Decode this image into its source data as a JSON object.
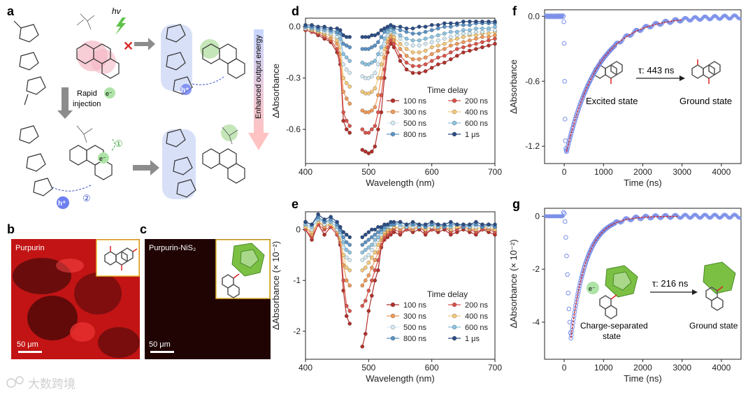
{
  "panels": {
    "a": {
      "label": "a",
      "hv": "hv",
      "rapid": "Rapid",
      "injection": "injection",
      "electron": "e⁻",
      "hole": "h⁺",
      "step1": "①",
      "step2": "②",
      "energy_label": "Enhanced output energy"
    },
    "b": {
      "label": "b",
      "title": "Purpurin",
      "scale": "50 μm"
    },
    "c": {
      "label": "c",
      "title": "Purpurin-NiS₂",
      "scale": "50 μm"
    },
    "d": {
      "label": "d"
    },
    "e": {
      "label": "e"
    },
    "f": {
      "label": "f",
      "excited": "Excited state",
      "ground": "Ground state",
      "tau": "τ: 443 ns"
    },
    "g": {
      "label": "g",
      "charge": "Charge-separated",
      "charge2": "state",
      "ground": "Ground state",
      "tau": "τ: 216 ns",
      "electron": "e⁻"
    }
  },
  "watermark": "大数跨境",
  "colors": {
    "series": [
      "#b2302a",
      "#d9534a",
      "#ef9a5a",
      "#f5c97a",
      "#d6ecf5",
      "#8cc3e2",
      "#5a93c7",
      "#2b4d86"
    ],
    "fit": "#cc2a2a",
    "decay_points": "#7b8fe8",
    "accent_yellow": "#e8b830"
  },
  "chart_data": [
    {
      "panel": "d",
      "type": "line",
      "xlabel": "Wavelength (nm)",
      "ylabel": "ΔAbsorbance",
      "xlim": [
        400,
        700
      ],
      "ylim": [
        -0.8,
        0.05
      ],
      "xticks": [
        400,
        500,
        600,
        700
      ],
      "yticks": [
        0.0,
        -0.3,
        -0.6
      ],
      "ytick_labels": [
        "0.0",
        "-0.3",
        "-0.6"
      ],
      "legend_title": "Time delay",
      "legend_position": "lower-right",
      "x": [
        400,
        410,
        420,
        430,
        440,
        450,
        455,
        460,
        465,
        470,
        490,
        495,
        500,
        505,
        510,
        515,
        520,
        525,
        530,
        535,
        540,
        550,
        560,
        570,
        580,
        590,
        600,
        610,
        620,
        630,
        640,
        650,
        660,
        670,
        680,
        690,
        700
      ],
      "series": [
        {
          "name": "100 ns",
          "values": [
            -0.02,
            -0.03,
            -0.05,
            -0.07,
            -0.09,
            -0.15,
            -0.22,
            -0.55,
            -0.6,
            -0.62,
            -0.72,
            -0.73,
            -0.74,
            -0.73,
            -0.7,
            -0.6,
            -0.5,
            -0.3,
            -0.15,
            -0.1,
            -0.12,
            -0.2,
            -0.25,
            -0.27,
            -0.27,
            -0.26,
            -0.24,
            -0.22,
            -0.21,
            -0.19,
            -0.17,
            -0.15,
            -0.14,
            -0.13,
            -0.12,
            -0.11,
            -0.1
          ]
        },
        {
          "name": "200 ns",
          "values": [
            -0.02,
            -0.03,
            -0.04,
            -0.06,
            -0.08,
            -0.13,
            -0.2,
            -0.5,
            -0.55,
            -0.58,
            -0.6,
            -0.62,
            -0.62,
            -0.6,
            -0.58,
            -0.5,
            -0.4,
            -0.25,
            -0.12,
            -0.08,
            -0.1,
            -0.17,
            -0.21,
            -0.23,
            -0.23,
            -0.22,
            -0.2,
            -0.18,
            -0.17,
            -0.15,
            -0.13,
            -0.12,
            -0.11,
            -0.1,
            -0.09,
            -0.08,
            -0.07
          ]
        },
        {
          "name": "300 ns",
          "values": [
            -0.01,
            -0.02,
            -0.03,
            -0.05,
            -0.07,
            -0.1,
            -0.16,
            -0.38,
            -0.42,
            -0.45,
            -0.49,
            -0.5,
            -0.5,
            -0.49,
            -0.47,
            -0.4,
            -0.3,
            -0.18,
            -0.09,
            -0.06,
            -0.08,
            -0.13,
            -0.17,
            -0.19,
            -0.19,
            -0.18,
            -0.16,
            -0.14,
            -0.13,
            -0.11,
            -0.1,
            -0.09,
            -0.08,
            -0.07,
            -0.06,
            -0.06,
            -0.05
          ]
        },
        {
          "name": "400 ns",
          "values": [
            -0.01,
            -0.02,
            -0.03,
            -0.04,
            -0.05,
            -0.08,
            -0.12,
            -0.3,
            -0.33,
            -0.35,
            -0.38,
            -0.39,
            -0.39,
            -0.38,
            -0.36,
            -0.3,
            -0.22,
            -0.13,
            -0.07,
            -0.04,
            -0.06,
            -0.1,
            -0.13,
            -0.15,
            -0.15,
            -0.14,
            -0.12,
            -0.11,
            -0.1,
            -0.08,
            -0.07,
            -0.06,
            -0.05,
            -0.05,
            -0.04,
            -0.04,
            -0.03
          ]
        },
        {
          "name": "500 ns",
          "values": [
            -0.01,
            -0.01,
            -0.02,
            -0.03,
            -0.04,
            -0.06,
            -0.09,
            -0.22,
            -0.25,
            -0.27,
            -0.29,
            -0.3,
            -0.3,
            -0.29,
            -0.27,
            -0.22,
            -0.16,
            -0.1,
            -0.05,
            -0.03,
            -0.04,
            -0.07,
            -0.1,
            -0.11,
            -0.11,
            -0.1,
            -0.09,
            -0.08,
            -0.07,
            -0.06,
            -0.05,
            -0.04,
            -0.04,
            -0.03,
            -0.03,
            -0.02,
            -0.02
          ]
        },
        {
          "name": "600 ns",
          "values": [
            0.0,
            -0.01,
            -0.02,
            -0.02,
            -0.03,
            -0.04,
            -0.07,
            -0.16,
            -0.18,
            -0.2,
            -0.21,
            -0.22,
            -0.22,
            -0.21,
            -0.2,
            -0.16,
            -0.12,
            -0.07,
            -0.03,
            -0.02,
            -0.03,
            -0.05,
            -0.07,
            -0.08,
            -0.08,
            -0.07,
            -0.06,
            -0.05,
            -0.04,
            -0.03,
            -0.03,
            -0.02,
            -0.02,
            -0.01,
            -0.01,
            -0.01,
            0.0
          ]
        },
        {
          "name": "800 ns",
          "values": [
            0.0,
            0.0,
            -0.01,
            -0.01,
            -0.02,
            -0.03,
            -0.04,
            -0.1,
            -0.11,
            -0.12,
            -0.13,
            -0.13,
            -0.13,
            -0.12,
            -0.11,
            -0.09,
            -0.06,
            -0.03,
            -0.01,
            0.0,
            -0.01,
            -0.02,
            -0.03,
            -0.04,
            -0.04,
            -0.03,
            -0.02,
            -0.01,
            0.0,
            0.0,
            0.01,
            0.01,
            0.01,
            0.02,
            0.02,
            0.02,
            0.02
          ]
        },
        {
          "name": "1 μs",
          "values": [
            0.01,
            0.01,
            0.0,
            0.0,
            -0.01,
            -0.01,
            -0.02,
            -0.05,
            -0.06,
            -0.06,
            -0.06,
            -0.06,
            -0.06,
            -0.05,
            -0.05,
            -0.04,
            -0.02,
            -0.01,
            0.0,
            0.01,
            0.0,
            0.0,
            -0.01,
            -0.01,
            0.0,
            0.0,
            0.01,
            0.01,
            0.02,
            0.02,
            0.02,
            0.03,
            0.03,
            0.03,
            0.03,
            0.03,
            0.03
          ]
        }
      ]
    },
    {
      "panel": "e",
      "type": "line",
      "xlabel": "Wavelength (nm)",
      "ylabel": "ΔAbsorbance (× 10⁻²)",
      "xlim": [
        400,
        700
      ],
      "ylim": [
        -2.55,
        0.35
      ],
      "xticks": [
        400,
        500,
        600,
        700
      ],
      "yticks": [
        0,
        -1,
        -2
      ],
      "ytick_labels": [
        "0",
        "-1",
        "-2"
      ],
      "legend_title": "Time delay",
      "legend_position": "lower-right",
      "x": [
        400,
        410,
        420,
        430,
        440,
        450,
        455,
        460,
        465,
        470,
        490,
        495,
        500,
        505,
        510,
        515,
        520,
        525,
        530,
        535,
        540,
        550,
        560,
        570,
        580,
        590,
        600,
        610,
        620,
        630,
        640,
        650,
        660,
        670,
        680,
        690,
        700
      ],
      "series": [
        {
          "name": "100 ns",
          "values": [
            0.0,
            -0.2,
            0.1,
            -0.1,
            0.05,
            -0.1,
            -0.3,
            -1.2,
            -1.7,
            -1.85,
            -2.3,
            -2.05,
            -1.6,
            -1.3,
            -1.0,
            -0.8,
            -0.35,
            -0.2,
            -0.15,
            -0.1,
            -0.05,
            -0.1,
            0.0,
            -0.05,
            0.0,
            -0.1,
            0.0,
            -0.05,
            0.0,
            -0.1,
            -0.05,
            0.0,
            -0.05,
            -0.1,
            0.0,
            -0.05,
            -0.1
          ]
        },
        {
          "name": "200 ns",
          "values": [
            0.0,
            -0.15,
            0.1,
            0.0,
            0.05,
            -0.1,
            -0.25,
            -1.0,
            -1.5,
            -1.6,
            -1.5,
            -1.4,
            -1.2,
            -1.0,
            -0.8,
            -0.6,
            -0.3,
            -0.15,
            -0.1,
            -0.05,
            0.0,
            -0.05,
            0.0,
            0.0,
            0.05,
            -0.05,
            0.0,
            0.0,
            0.05,
            -0.05,
            0.0,
            0.05,
            0.0,
            -0.05,
            0.0,
            0.0,
            -0.05
          ]
        },
        {
          "name": "300 ns",
          "values": [
            0.05,
            -0.1,
            0.15,
            0.05,
            0.1,
            -0.05,
            -0.2,
            -0.7,
            -1.0,
            -1.1,
            -1.1,
            -1.0,
            -0.9,
            -0.75,
            -0.6,
            -0.45,
            -0.2,
            -0.1,
            -0.05,
            0.0,
            0.05,
            0.0,
            0.05,
            0.0,
            0.05,
            0.0,
            0.05,
            0.0,
            0.05,
            0.0,
            0.05,
            0.05,
            0.0,
            0.0,
            0.05,
            0.0,
            0.0
          ]
        },
        {
          "name": "400 ns",
          "values": [
            0.05,
            -0.05,
            0.15,
            0.1,
            0.1,
            0.0,
            -0.15,
            -0.5,
            -0.75,
            -0.8,
            -0.8,
            -0.75,
            -0.65,
            -0.55,
            -0.45,
            -0.3,
            -0.15,
            -0.05,
            0.0,
            0.05,
            0.05,
            0.05,
            0.05,
            0.05,
            0.05,
            0.0,
            0.05,
            0.05,
            0.05,
            0.0,
            0.05,
            0.05,
            0.05,
            0.0,
            0.05,
            0.05,
            0.0
          ]
        },
        {
          "name": "500 ns",
          "values": [
            0.1,
            0.0,
            0.2,
            0.1,
            0.15,
            0.0,
            -0.1,
            -0.35,
            -0.55,
            -0.6,
            -0.6,
            -0.55,
            -0.5,
            -0.4,
            -0.3,
            -0.2,
            -0.1,
            0.0,
            0.05,
            0.05,
            0.1,
            0.05,
            0.1,
            0.05,
            0.1,
            0.05,
            0.05,
            0.1,
            0.05,
            0.05,
            0.1,
            0.05,
            0.05,
            0.05,
            0.1,
            0.05,
            0.05
          ]
        },
        {
          "name": "600 ns",
          "values": [
            0.1,
            0.05,
            0.2,
            0.15,
            0.15,
            0.05,
            -0.05,
            -0.25,
            -0.4,
            -0.45,
            -0.45,
            -0.4,
            -0.35,
            -0.3,
            -0.2,
            -0.15,
            -0.05,
            0.0,
            0.05,
            0.1,
            0.1,
            0.1,
            0.05,
            0.1,
            0.05,
            0.1,
            0.1,
            0.05,
            0.1,
            0.05,
            0.1,
            0.1,
            0.05,
            0.1,
            0.05,
            0.1,
            0.05
          ]
        },
        {
          "name": "800 ns",
          "values": [
            0.15,
            0.1,
            0.25,
            0.15,
            0.2,
            0.1,
            0.0,
            -0.15,
            -0.25,
            -0.3,
            -0.3,
            -0.25,
            -0.2,
            -0.15,
            -0.1,
            -0.05,
            0.0,
            0.05,
            0.1,
            0.1,
            0.1,
            0.15,
            0.1,
            0.1,
            0.1,
            0.05,
            0.1,
            0.1,
            0.05,
            0.1,
            0.1,
            0.05,
            0.1,
            0.1,
            0.05,
            0.1,
            0.05
          ]
        },
        {
          "name": "1 μs",
          "values": [
            0.15,
            0.1,
            0.3,
            0.2,
            0.25,
            0.15,
            0.05,
            -0.05,
            -0.1,
            -0.15,
            -0.15,
            -0.1,
            -0.05,
            0.0,
            0.0,
            0.05,
            0.05,
            0.1,
            0.1,
            0.15,
            0.15,
            0.15,
            0.1,
            0.15,
            0.1,
            0.1,
            0.15,
            0.1,
            0.1,
            0.15,
            0.1,
            0.1,
            0.1,
            0.15,
            0.1,
            0.1,
            0.1
          ]
        }
      ]
    },
    {
      "panel": "f",
      "type": "scatter",
      "xlabel": "Time (ns)",
      "ylabel": "ΔAbsorbance",
      "xlim": [
        -500,
        4500
      ],
      "ylim": [
        -1.36,
        0.06
      ],
      "xticks": [
        0,
        1000,
        2000,
        3000,
        4000
      ],
      "yticks": [
        0.0,
        -0.6,
        -1.2
      ],
      "ytick_labels": [
        "0.0",
        "-0.6",
        "-1.2"
      ],
      "tau_ns": 443,
      "amplitude": -1.25,
      "t_peak_ns": 60,
      "fit_end_ns": 3000,
      "pre_points_x": [
        -20,
        -10,
        0,
        10,
        20,
        30,
        40,
        50,
        60
      ],
      "pre_points_y": [
        0.0,
        -0.05,
        -0.25,
        -0.6,
        -0.95,
        -1.15,
        -1.22,
        -1.24,
        -1.25
      ]
    },
    {
      "panel": "g",
      "type": "scatter",
      "xlabel": "Time (ns)",
      "ylabel": "ΔAbsorbance (× 10⁻²)",
      "xlim": [
        -500,
        4500
      ],
      "ylim": [
        -5.4,
        0.3
      ],
      "xticks": [
        0,
        1000,
        2000,
        3000,
        4000
      ],
      "yticks": [
        0,
        -2,
        -4
      ],
      "ytick_labels": [
        "0",
        "-2",
        "-4"
      ],
      "tau_ns": 216,
      "amplitude": -4.6,
      "t_peak_ns": 170,
      "fit_end_ns": 2900,
      "pre_points_x": [
        -20,
        0,
        20,
        40,
        60,
        80,
        100,
        120,
        140,
        160,
        170
      ],
      "pre_points_y": [
        0.15,
        0.1,
        -0.2,
        -0.8,
        -1.5,
        -2.2,
        -2.9,
        -3.5,
        -4.0,
        -4.4,
        -4.6
      ]
    }
  ]
}
